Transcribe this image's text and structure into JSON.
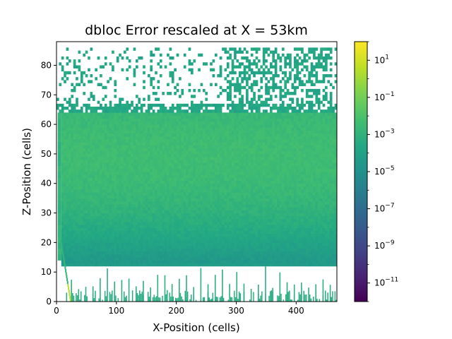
{
  "chart_data": {
    "type": "heatmap",
    "title": "dbloc Error rescaled at X = 53km",
    "xlabel": "X-Position (cells)",
    "ylabel": "Z-Position (cells)",
    "xlim": [
      0,
      468
    ],
    "ylim": [
      0,
      88
    ],
    "x_ticks": [
      0,
      100,
      200,
      300,
      400
    ],
    "y_ticks": [
      0,
      10,
      20,
      30,
      40,
      50,
      60,
      70,
      80
    ],
    "colorbar": {
      "scale": "log",
      "colormap": "viridis",
      "range_exponent": [
        -12,
        2
      ],
      "tick_exponents": [
        1,
        -1,
        -3,
        -5,
        -7,
        -9,
        -11
      ],
      "tick_labels": [
        "10",
        "10",
        "10",
        "10",
        "10",
        "10",
        "10"
      ],
      "tick_superscripts": [
        "1",
        "−1",
        "−3",
        "−5",
        "−7",
        "−9",
        "−11"
      ]
    },
    "regions": [
      {
        "z_range": [
          0,
          4
        ],
        "log10_value": -3.2,
        "coverage": "sparse spikes"
      },
      {
        "z_range": [
          4,
          12
        ],
        "log10_value": -3.3,
        "coverage": "vertical columns every ~12 cells"
      },
      {
        "z_range": [
          12,
          13
        ],
        "log10_value": -4.5,
        "coverage": "full"
      },
      {
        "z_range": [
          13,
          64
        ],
        "log10_value": -2.6,
        "coverage": "full",
        "peak_z": 50
      },
      {
        "z_range": [
          64,
          86
        ],
        "log10_value": -3.4,
        "coverage": "patchy"
      }
    ],
    "colors": {
      "low": "#440154",
      "mid": "#21918c",
      "high": "#fde725"
    }
  }
}
